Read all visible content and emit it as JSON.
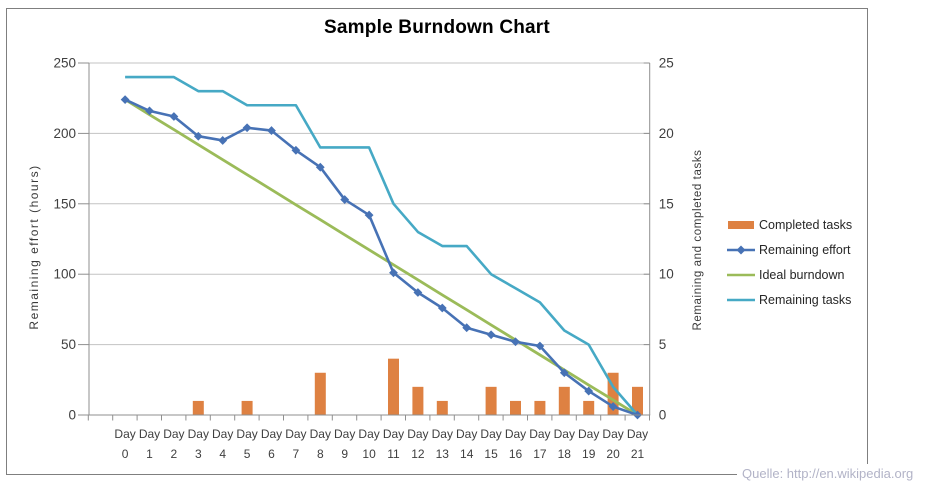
{
  "title": "Sample Burndown Chart",
  "source_note": "Quelle: http://en.wikipedia.org",
  "chart_data": {
    "type": "combo (bar + line)",
    "title": "Sample Burndown Chart",
    "x_categories": [
      "Day 0",
      "Day 1",
      "Day 2",
      "Day 3",
      "Day 4",
      "Day 5",
      "Day 6",
      "Day 7",
      "Day 8",
      "Day 9",
      "Day 10",
      "Day 11",
      "Day 12",
      "Day 13",
      "Day 14",
      "Day 15",
      "Day 16",
      "Day 17",
      "Day 18",
      "Day 19",
      "Day 20",
      "Day 21"
    ],
    "left_axis": {
      "label": "Remaining effort (hours)",
      "min": 0,
      "max": 250,
      "ticks": [
        0,
        50,
        100,
        150,
        200,
        250
      ]
    },
    "right_axis": {
      "label": "Remaining and completed tasks",
      "min": 0,
      "max": 25,
      "ticks": [
        0,
        5,
        10,
        15,
        20,
        25
      ]
    },
    "grid": "horizontal gridlines on",
    "legend_position": "right",
    "series": [
      {
        "name": "Completed tasks",
        "type": "bar",
        "axis": "right",
        "color": "#de8142",
        "values": [
          0,
          0,
          0,
          1,
          0,
          1,
          0,
          0,
          3,
          0,
          0,
          4,
          2,
          1,
          0,
          2,
          1,
          1,
          2,
          1,
          3,
          2
        ]
      },
      {
        "name": "Remaining effort",
        "type": "line",
        "axis": "left",
        "color": "#4772b5",
        "marker": "diamond",
        "values": [
          224,
          216,
          212,
          198,
          195,
          204,
          202,
          188,
          176,
          153,
          142,
          101,
          87,
          76,
          62,
          57,
          52,
          49,
          30,
          17,
          6,
          0
        ]
      },
      {
        "name": "Ideal burndown",
        "type": "line",
        "axis": "left",
        "color": "#9bbb59",
        "marker": "none",
        "values": [
          224,
          213.3,
          202.7,
          192,
          181.3,
          170.7,
          160,
          149.3,
          138.7,
          128,
          117.3,
          106.7,
          96,
          85.3,
          74.7,
          64,
          53.3,
          42.7,
          32,
          21.3,
          10.7,
          0
        ]
      },
      {
        "name": "Remaining tasks",
        "type": "line",
        "axis": "right",
        "color": "#46a9c5",
        "marker": "none",
        "values": [
          24,
          24,
          24,
          23,
          23,
          22,
          22,
          22,
          19,
          19,
          19,
          15,
          13,
          12,
          12,
          10,
          9,
          8,
          6,
          5,
          2,
          0
        ]
      }
    ],
    "colors": {
      "gridline": "#c3c3c3",
      "axis_line": "#8f8f8f",
      "tick_label": "#3f3f3f",
      "title": "#000000",
      "source_note": "#b2b3c7"
    }
  }
}
